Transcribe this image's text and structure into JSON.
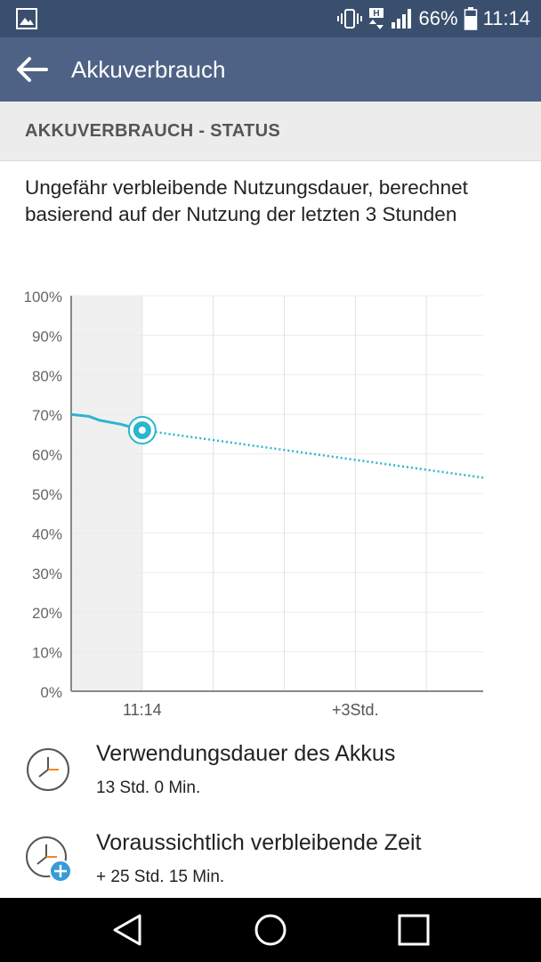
{
  "status_bar": {
    "battery_percent_text": "66%",
    "time": "11:14",
    "icons": [
      "gallery-icon",
      "vibrate-icon",
      "hplus-data-icon",
      "signal-icon",
      "battery-icon"
    ]
  },
  "app_bar": {
    "title": "Akkuverbrauch",
    "back_icon": "arrow-left-icon"
  },
  "section": {
    "header": "AKKUVERBRAUCH - STATUS"
  },
  "description": "Ungefähr verbleibende Nutzungsdauer, berechnet basierend auf der Nutzung der letzten 3 Stunden",
  "chart_data": {
    "type": "line",
    "ylim": [
      0,
      100
    ],
    "y_ticks": [
      "0%",
      "10%",
      "20%",
      "30%",
      "40%",
      "50%",
      "60%",
      "70%",
      "80%",
      "90%",
      "100%"
    ],
    "x_ticks": [
      {
        "label": "11:14",
        "hour": 0
      },
      {
        "label": "+3Std.",
        "hour": 3
      }
    ],
    "xlim_hours": [
      -1,
      4.8
    ],
    "grid": true,
    "accent_color": "#2bb5cf",
    "history": {
      "style": "solid",
      "points": [
        {
          "hour": -1.0,
          "percent": 70
        },
        {
          "hour": -0.75,
          "percent": 69.5
        },
        {
          "hour": -0.6,
          "percent": 68.5
        },
        {
          "hour": -0.3,
          "percent": 67.5
        },
        {
          "hour": 0,
          "percent": 66
        }
      ]
    },
    "projection": {
      "style": "dotted",
      "points": [
        {
          "hour": 0,
          "percent": 66
        },
        {
          "hour": 4.8,
          "percent": 54
        }
      ]
    },
    "current_marker": {
      "hour": 0,
      "percent": 66
    }
  },
  "items": [
    {
      "label": "Verwendungsdauer des Akkus",
      "value": "13 Std. 0 Min.",
      "icon": "clock-icon"
    },
    {
      "label": "Voraussichtlich verbleibende Zeit",
      "value": "+ 25 Std. 15 Min.",
      "icon": "clock-plus-icon"
    }
  ],
  "nav": {
    "icons": [
      "back-triangle-icon",
      "home-circle-icon",
      "recents-square-icon"
    ]
  }
}
